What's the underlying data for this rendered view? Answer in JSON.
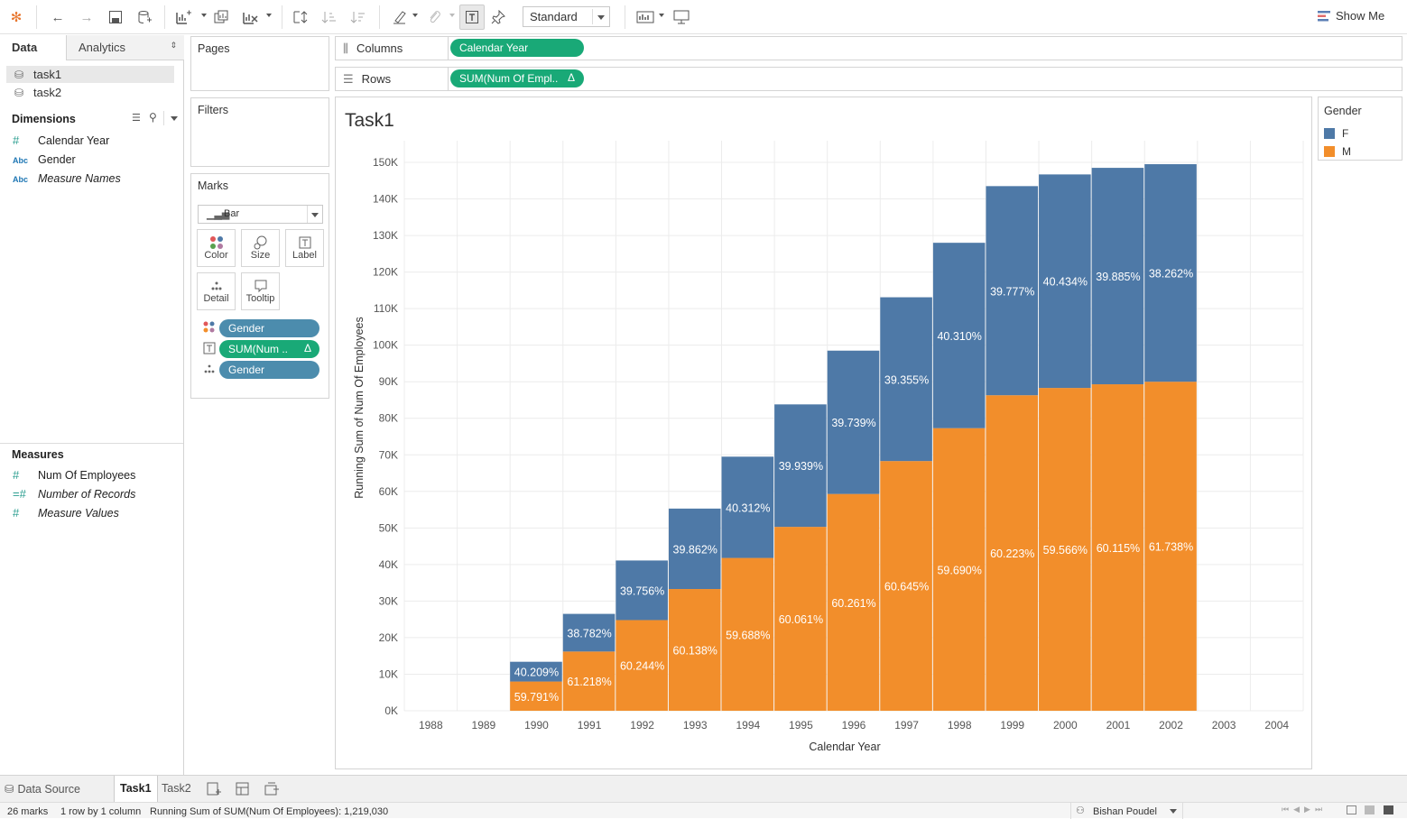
{
  "toolbar": {
    "fit_mode": "Standard",
    "show_me": "Show Me"
  },
  "left_pane": {
    "tab_data": "Data",
    "tab_analytics": "Analytics",
    "data_sources": [
      "task1",
      "task2"
    ],
    "dimensions_title": "Dimensions",
    "dimensions": [
      "Calendar Year",
      "Gender",
      "Measure Names"
    ],
    "measures_title": "Measures",
    "measures": [
      "Num Of Employees",
      "Number of Records",
      "Measure Values"
    ],
    "type_abc": "Abc"
  },
  "cards": {
    "pages": "Pages",
    "filters": "Filters",
    "marks": "Marks",
    "mark_type": "Bar",
    "buttons": [
      "Color",
      "Size",
      "Label",
      "Detail",
      "Tooltip"
    ],
    "mark_pills": [
      "Gender",
      "SUM(Num ..",
      "Gender"
    ],
    "delta": "Δ"
  },
  "shelves": {
    "columns_label": "Columns",
    "columns_pill": "Calendar Year",
    "rows_label": "Rows",
    "rows_pill": "SUM(Num Of Empl.."
  },
  "legend": {
    "title": "Gender",
    "items": [
      {
        "label": "F",
        "color": "#4e79a7"
      },
      {
        "label": "M",
        "color": "#f28e2b"
      }
    ]
  },
  "chart_data": {
    "type": "bar",
    "stacked": true,
    "title": "Task1",
    "xlabel": "Calendar Year",
    "ylabel": "Running Sum of Num Of Employees",
    "x_ticks": [
      "1988",
      "1989",
      "1990",
      "1991",
      "1992",
      "1993",
      "1994",
      "1995",
      "1996",
      "1997",
      "1998",
      "1999",
      "2000",
      "2001",
      "2002",
      "2003",
      "2004"
    ],
    "y_ticks": [
      "0K",
      "10K",
      "20K",
      "30K",
      "40K",
      "50K",
      "60K",
      "70K",
      "80K",
      "90K",
      "100K",
      "110K",
      "120K",
      "130K",
      "140K",
      "150K"
    ],
    "ylim": [
      0,
      152000
    ],
    "categories": [
      "1990",
      "1991",
      "1992",
      "1993",
      "1994",
      "1995",
      "1996",
      "1997",
      "1998",
      "1999",
      "2000",
      "2001",
      "2002"
    ],
    "series": [
      {
        "name": "M",
        "color": "#f28e2b",
        "values": [
          8000,
          16200,
          24800,
          33300,
          41800,
          50300,
          59300,
          68300,
          77300,
          86300,
          88300,
          89300,
          90000
        ],
        "labels": [
          "59.791%",
          "61.218%",
          "60.244%",
          "60.138%",
          "59.688%",
          "60.061%",
          "60.261%",
          "60.645%",
          "59.690%",
          "60.223%",
          "59.566%",
          "60.115%",
          "61.738%"
        ]
      },
      {
        "name": "F",
        "color": "#4e79a7",
        "values": [
          5400,
          10300,
          16300,
          22000,
          27700,
          33500,
          39200,
          44800,
          50700,
          57200,
          58400,
          59200,
          59500
        ],
        "labels": [
          "40.209%",
          "38.782%",
          "39.756%",
          "39.862%",
          "40.312%",
          "39.939%",
          "39.739%",
          "39.355%",
          "40.310%",
          "39.777%",
          "40.434%",
          "39.885%",
          "38.262%"
        ]
      }
    ],
    "grid": true,
    "legend_position": "right"
  },
  "sheet_tabs": {
    "data_source": "Data Source",
    "tabs": [
      "Task1",
      "Task2"
    ]
  },
  "status": {
    "marks": "26 marks",
    "dims": "1 row by 1 column",
    "summary": "Running Sum of SUM(Num Of Employees): 1,219,030",
    "user": "Bishan Poudel"
  }
}
